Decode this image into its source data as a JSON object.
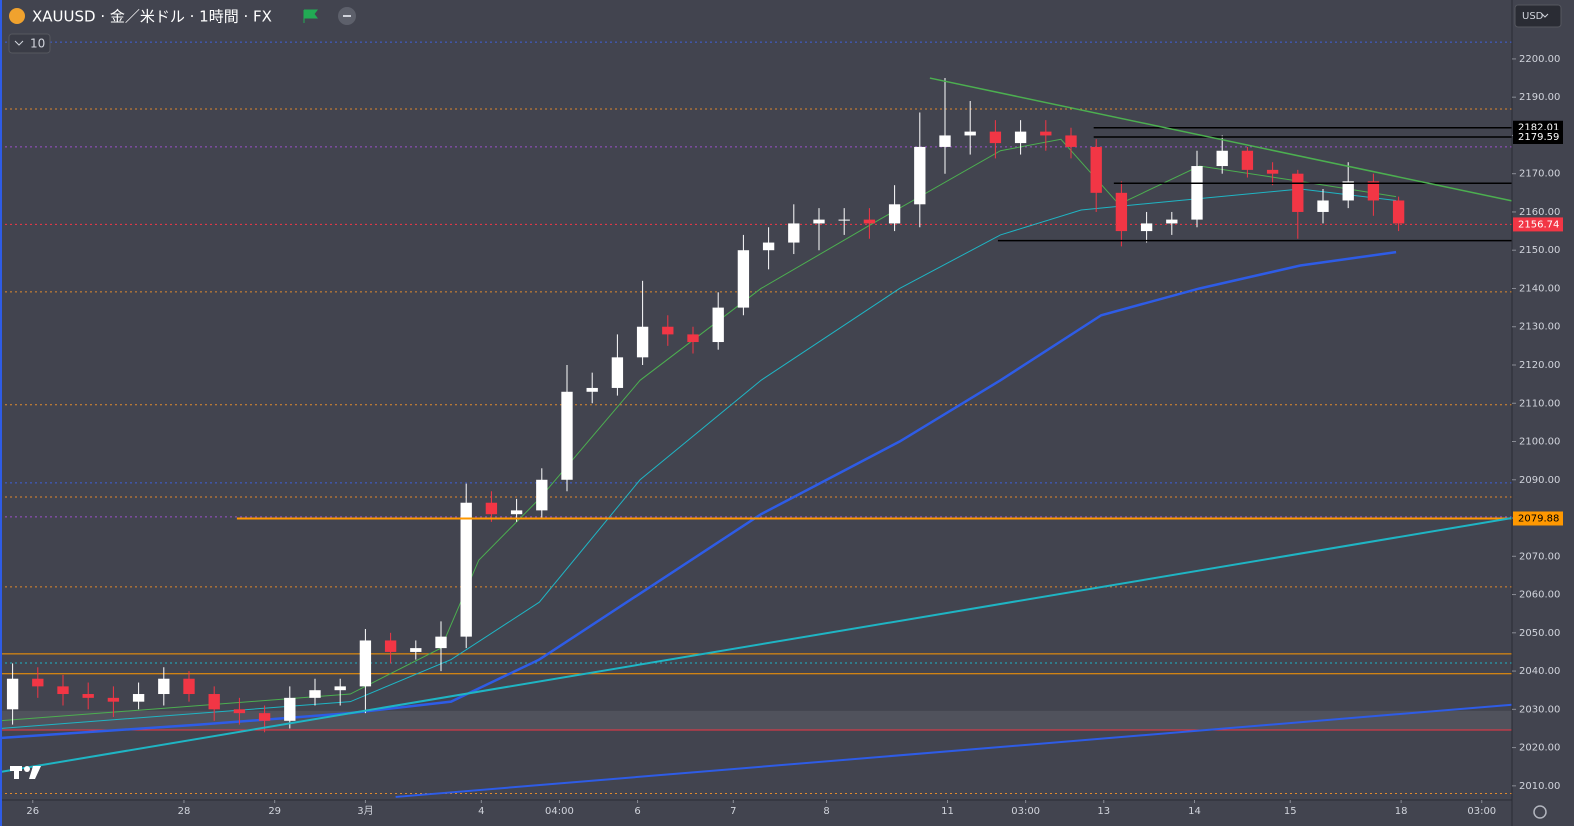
{
  "header": {
    "symbol": "XAUUSD · 金／米ドル · 1時間 · FX",
    "indicator_count": "10",
    "currency": "USD"
  },
  "chart_data": {
    "type": "candlestick",
    "x": [
      0.5,
      1.5,
      2.5,
      3.5,
      4.5,
      5.5,
      6.5,
      7.5,
      8.5,
      9.5,
      10.5,
      11.5,
      12.5,
      13.5,
      14.5,
      15.5,
      16.5,
      17.5,
      18.5,
      19.5,
      20.5,
      21.5,
      22.5,
      23.5,
      24.5,
      25.5,
      26.5,
      27.5,
      28.5,
      29.5,
      30.5,
      31.5,
      32.5,
      33.5,
      34.5,
      35.5,
      36.5,
      37.5,
      38.5,
      39.5,
      40.5,
      41.5,
      42.5,
      43.5,
      44.5,
      45.5,
      46.5,
      47.5,
      48.5,
      49.5,
      50.5,
      51.5,
      52.5,
      53.5,
      54.5,
      55.5
    ],
    "open": [
      2030,
      2038,
      2036,
      2034,
      2033,
      2032,
      2034,
      2038,
      2034,
      2030,
      2029,
      2027,
      2033,
      2035,
      2036,
      2048,
      2045,
      2046,
      2049,
      2084,
      2081,
      2082,
      2090,
      2113,
      2114,
      2122,
      2130,
      2128,
      2126,
      2135,
      2150,
      2152,
      2157,
      2158,
      2158,
      2157,
      2162,
      2177,
      2180,
      2181,
      2178,
      2181,
      2180,
      2177,
      2165,
      2155,
      2157,
      2158,
      2172,
      2176,
      2171,
      2170,
      2160,
      2163,
      2168,
      2163
    ],
    "high": [
      2042,
      2041,
      2039,
      2037,
      2036,
      2037,
      2041,
      2040,
      2036,
      2033,
      2031,
      2036,
      2038,
      2038,
      2051,
      2050,
      2048,
      2053,
      2089,
      2087,
      2085,
      2093,
      2120,
      2118,
      2128,
      2142,
      2133,
      2130,
      2139,
      2154,
      2156,
      2162,
      2161,
      2161,
      2161,
      2167,
      2186,
      2195,
      2189,
      2184,
      2184,
      2184,
      2182,
      2179,
      2168,
      2160,
      2160,
      2176,
      2180,
      2177,
      2173,
      2171,
      2166,
      2173,
      2170,
      2164
    ],
    "low": [
      2026,
      2033,
      2031,
      2030,
      2028,
      2030,
      2031,
      2032,
      2027,
      2026,
      2024,
      2025,
      2031,
      2031,
      2029,
      2042,
      2043,
      2040,
      2046,
      2079,
      2079,
      2080,
      2087,
      2110,
      2112,
      2120,
      2125,
      2123,
      2124,
      2133,
      2145,
      2149,
      2150,
      2154,
      2153,
      2155,
      2156,
      2170,
      2175,
      2174,
      2175,
      2176,
      2174,
      2160,
      2151,
      2152,
      2154,
      2156,
      2170,
      2169,
      2167,
      2153,
      2157,
      2161,
      2159,
      2155
    ],
    "close": [
      2038,
      2036,
      2034,
      2033,
      2032,
      2034,
      2038,
      2034,
      2030,
      2029,
      2027,
      2033,
      2035,
      2036,
      2048,
      2045,
      2046,
      2049,
      2084,
      2081,
      2082,
      2090,
      2113,
      2114,
      2122,
      2130,
      2128,
      2126,
      2135,
      2150,
      2152,
      2157,
      2158,
      2158,
      2157,
      2162,
      2177,
      2180,
      2181,
      2178,
      2181,
      2180,
      2177,
      2165,
      2155,
      2157,
      2158,
      2172,
      2176,
      2171,
      2170,
      2160,
      2163,
      2168,
      2163,
      2157
    ],
    "up_color": "#ffffff",
    "down_color": "#f23645",
    "xlim": [
      0,
      60
    ],
    "xticks": [
      {
        "value": 1.3,
        "label": "26"
      },
      {
        "value": 7.3,
        "label": "28"
      },
      {
        "value": 10.9,
        "label": "29"
      },
      {
        "value": 14.5,
        "label": "3月"
      },
      {
        "value": 19.1,
        "label": "4"
      },
      {
        "value": 22.2,
        "label": "04:00"
      },
      {
        "value": 25.3,
        "label": "6"
      },
      {
        "value": 29.1,
        "label": "7"
      },
      {
        "value": 32.8,
        "label": "8"
      },
      {
        "value": 37.6,
        "label": "11"
      },
      {
        "value": 40.7,
        "label": "03:00"
      },
      {
        "value": 43.8,
        "label": "13"
      },
      {
        "value": 47.4,
        "label": "14"
      },
      {
        "value": 51.2,
        "label": "15"
      },
      {
        "value": 55.6,
        "label": "18"
      },
      {
        "value": 58.8,
        "label": "03:00"
      }
    ],
    "ylim": [
      2006.3,
      2215.4
    ],
    "yticks": [
      {
        "value": 2010,
        "label": "2010.00"
      },
      {
        "value": 2020,
        "label": "2020.00"
      },
      {
        "value": 2030,
        "label": "2030.00"
      },
      {
        "value": 2040,
        "label": "2040.00"
      },
      {
        "value": 2050,
        "label": "2050.00"
      },
      {
        "value": 2060,
        "label": "2060.00"
      },
      {
        "value": 2070,
        "label": "2070.00"
      },
      {
        "value": 2080,
        "label": "2080.00"
      },
      {
        "value": 2090,
        "label": "2090.00"
      },
      {
        "value": 2100,
        "label": "2100.00"
      },
      {
        "value": 2110,
        "label": "2110.00"
      },
      {
        "value": 2120,
        "label": "2120.00"
      },
      {
        "value": 2130,
        "label": "2130.00"
      },
      {
        "value": 2140,
        "label": "2140.00"
      },
      {
        "value": 2150,
        "label": "2150.00"
      },
      {
        "value": 2160,
        "label": "2160.00"
      },
      {
        "value": 2170,
        "label": "2170.00"
      },
      {
        "value": 2180,
        "label": "2180.00"
      },
      {
        "value": 2190,
        "label": "2190.00"
      },
      {
        "value": 2200,
        "label": "2200.00"
      }
    ],
    "overlays": [
      {
        "color": "#2e5ce6",
        "width": 2.5,
        "x": [
          0,
          7.9,
          13.9,
          17.9,
          21.4,
          30.2,
          35.7,
          39.7,
          43.7,
          47.6,
          51.6,
          55.4
        ],
        "values": [
          2022.5,
          2026,
          2029,
          2032,
          2043,
          2081,
          2100,
          2116,
          2133,
          2140,
          2146,
          2149.5
        ]
      },
      {
        "color": "#1fb5c4",
        "width": 1,
        "x": [
          0,
          13.9,
          17.9,
          21.4,
          25.4,
          30.2,
          35.7,
          39.7,
          42.9,
          46.8,
          51.6,
          55.4
        ],
        "values": [
          2025,
          2032,
          2043,
          2058,
          2090,
          2116,
          2140,
          2154,
          2160.5,
          2163,
          2166,
          2163
        ]
      },
      {
        "color": "#4caf50",
        "width": 1,
        "x": [
          0,
          13.9,
          17.5,
          19,
          21.4,
          25.4,
          30.2,
          34.9,
          39.7,
          42.1,
          44.4,
          47.6,
          51.6,
          55.4
        ],
        "values": [
          2027,
          2034,
          2046,
          2069,
          2085,
          2116,
          2140,
          2158,
          2176,
          2179,
          2162,
          2172,
          2168,
          2164
        ]
      }
    ],
    "zones": [
      {
        "values": [
          2024.6,
          2029.6
        ],
        "color": "#5a5c66"
      }
    ],
    "levels": [
      {
        "value": 2204.4,
        "color": "#3f5fd6",
        "dash": true
      },
      {
        "value": 2186.9,
        "color": "#e0892e",
        "dash": true
      },
      {
        "value": 2177,
        "color": "#9b4fc9",
        "dash": true
      },
      {
        "value": 2156.74,
        "color": "#f23645",
        "dash": true
      },
      {
        "value": 2139.1,
        "color": "#e0892e",
        "dash": true
      },
      {
        "value": 2109.6,
        "color": "#e0892e",
        "dash": true
      },
      {
        "value": 2089.2,
        "color": "#3f5fd6",
        "dash": true
      },
      {
        "value": 2085.5,
        "color": "#e0892e",
        "dash": true
      },
      {
        "value": 2080.3,
        "color": "#9b4fc9",
        "dash": true
      },
      {
        "value": 2062,
        "color": "#e0892e",
        "dash": true
      },
      {
        "value": 2044.5,
        "color": "#ff9800",
        "dash": false
      },
      {
        "value": 2042.1,
        "color": "#1fb5c4",
        "dash": true
      },
      {
        "value": 2039.3,
        "color": "#ff9800",
        "dash": false
      },
      {
        "value": 2024.6,
        "color": "#f23645",
        "dash": false
      },
      {
        "value": 2008,
        "color": "#e0892e",
        "dash": true
      }
    ],
    "segments": [
      {
        "x": [
          43.4,
          60
        ],
        "values": [
          2182.01,
          2182.01
        ],
        "color": "#000000",
        "width": 1.5
      },
      {
        "x": [
          43.4,
          60
        ],
        "values": [
          2179.59,
          2179.59
        ],
        "color": "#000000",
        "width": 1.5
      },
      {
        "x": [
          44.2,
          60
        ],
        "values": [
          2167.5,
          2167.5
        ],
        "color": "#000000",
        "width": 1.5
      },
      {
        "x": [
          39.6,
          60
        ],
        "values": [
          2152.5,
          2152.5
        ],
        "color": "#000000",
        "width": 1.5
      },
      {
        "x": [
          9.4,
          60
        ],
        "values": [
          2079.88,
          2079.88
        ],
        "color": "#ff9800",
        "width": 2
      },
      {
        "x": [
          36.9,
          60
        ],
        "values": [
          2195,
          2162.9
        ],
        "color": "#4caf50",
        "width": 1.5
      },
      {
        "x": [
          0,
          60
        ],
        "values": [
          2013.6,
          2080
        ],
        "color": "#1fb5c4",
        "width": 2
      },
      {
        "x": [
          15.7,
          60
        ],
        "values": [
          2007.1,
          2031.2
        ],
        "color": "#2e5ce6",
        "width": 2
      }
    ],
    "price_labels": [
      {
        "value": 2182.01,
        "bg": "#000000",
        "fg": "#ffffff"
      },
      {
        "value": 2179.59,
        "bg": "#000000",
        "fg": "#ffffff"
      },
      {
        "value": 2156.74,
        "bg": "#f23645",
        "fg": "#ffffff"
      },
      {
        "value": 2079.88,
        "bg": "#ff9800",
        "fg": "#000000"
      }
    ]
  }
}
